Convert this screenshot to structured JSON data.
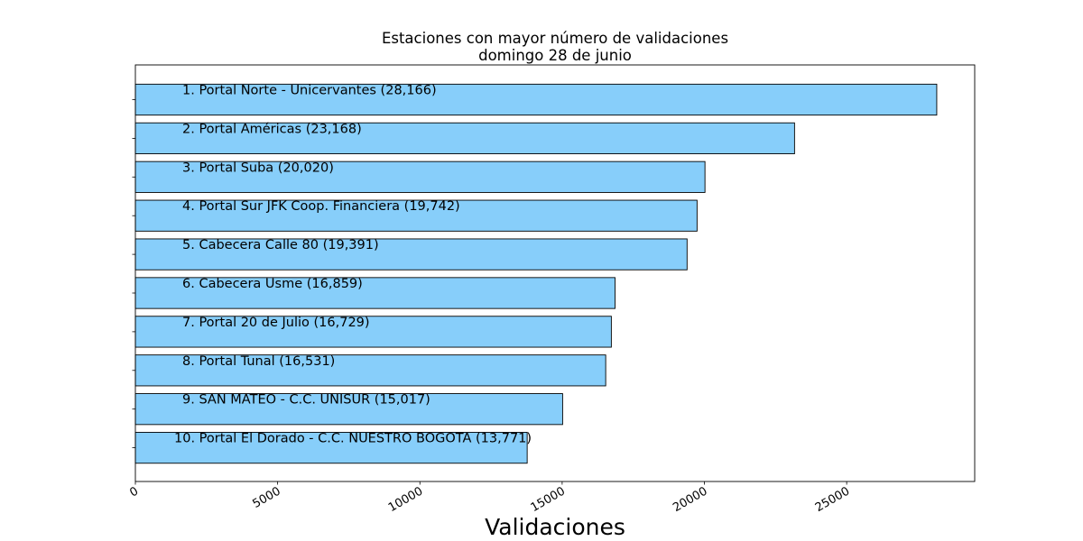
{
  "chart_data": {
    "type": "bar",
    "orientation": "horizontal",
    "title": "Estaciones con mayor número de validaciones",
    "subtitle": "domingo 28 de junio",
    "xlabel": "Validaciones",
    "ylabel": "",
    "xlim": [
      0,
      29500
    ],
    "xticks": [
      0,
      5000,
      10000,
      15000,
      20000,
      25000
    ],
    "xtick_labels": [
      "0",
      "5000",
      "10000",
      "15000",
      "20000",
      "25000"
    ],
    "grid": false,
    "bar_color": "#87CEFA",
    "edge_color": "#000000",
    "categories": [
      "Portal Norte - Unicervantes",
      "Portal Américas",
      "Portal Suba",
      "Portal Sur JFK Coop. Financiera",
      "Cabecera Calle 80",
      "Cabecera Usme",
      "Portal 20 de Julio",
      "Portal Tunal",
      "SAN MATEO - C.C. UNISUR",
      "Portal El Dorado - C.C. NUESTRO BOGOTA"
    ],
    "values": [
      28166,
      23168,
      20020,
      19742,
      19391,
      16859,
      16729,
      16531,
      15017,
      13771
    ],
    "bar_labels": [
      "1. Portal Norte - Unicervantes (28,166)",
      "2. Portal Américas (23,168)",
      "3. Portal Suba (20,020)",
      "4. Portal Sur JFK Coop. Financiera (19,742)",
      "5. Cabecera Calle 80 (19,391)",
      "6. Cabecera Usme (16,859)",
      "7. Portal 20 de Julio (16,729)",
      "8. Portal Tunal (16,531)",
      "9. SAN MATEO - C.C. UNISUR (15,017)",
      "10. Portal El Dorado - C.C. NUESTRO BOGOTA (13,771)"
    ]
  }
}
